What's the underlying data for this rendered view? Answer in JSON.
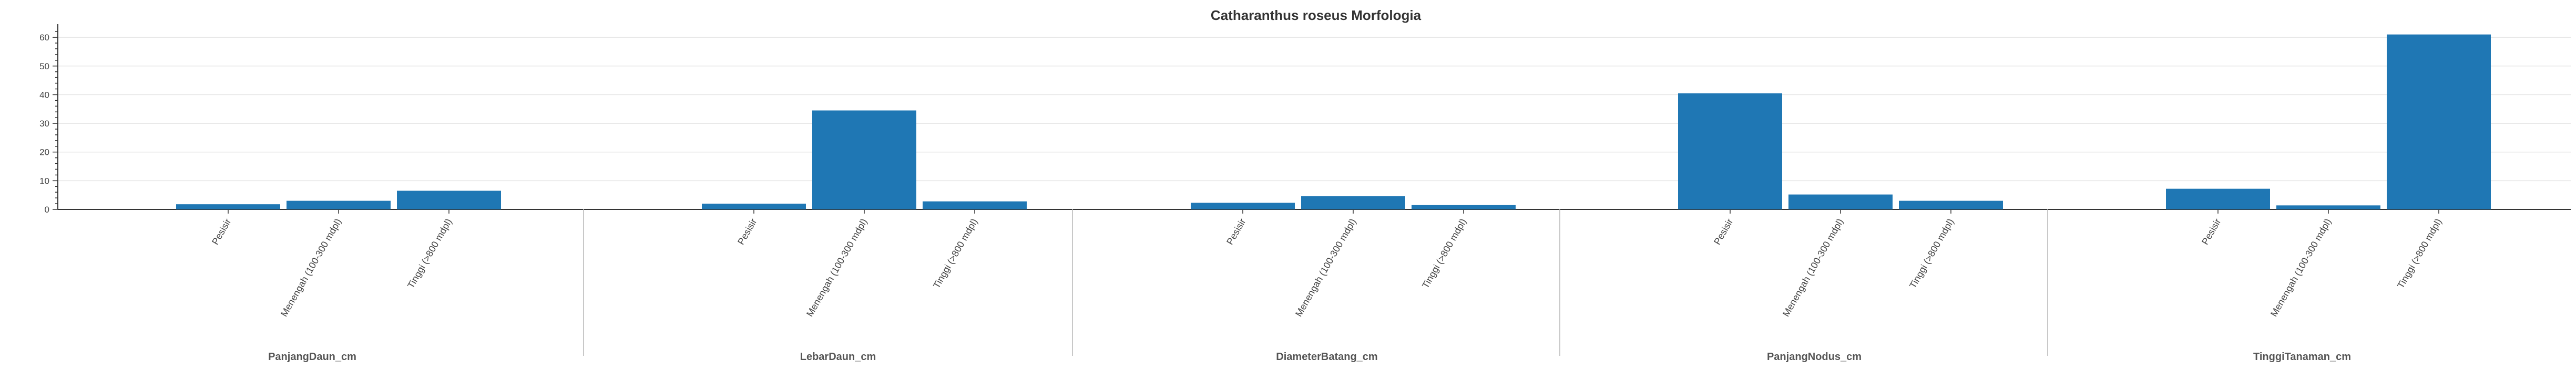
{
  "chart_data": {
    "type": "bar",
    "title": "Catharanthus roseus Morfologia",
    "groups": [
      {
        "name": "PanjangDaun_cm",
        "categories": [
          "Pesisir",
          "Menengah (100-300 mdpl)",
          "Tinggi (>800 mdpl)"
        ],
        "values": [
          1.8,
          3.0,
          6.5
        ]
      },
      {
        "name": "LebarDaun_cm",
        "categories": [
          "Pesisir",
          "Menengah (100-300 mdpl)",
          "Tinggi (>800 mdpl)"
        ],
        "values": [
          2.0,
          34.5,
          2.8
        ]
      },
      {
        "name": "DiameterBatang_cm",
        "categories": [
          "Pesisir",
          "Menengah (100-300 mdpl)",
          "Tinggi (>800 mdpl)"
        ],
        "values": [
          2.3,
          4.6,
          1.5
        ]
      },
      {
        "name": "PanjangNodus_cm",
        "categories": [
          "Pesisir",
          "Menengah (100-300 mdpl)",
          "Tinggi (>800 mdpl)"
        ],
        "values": [
          40.5,
          5.2,
          3.0
        ]
      },
      {
        "name": "TinggiTanaman_cm",
        "categories": [
          "Pesisir",
          "Menengah (100-300 mdpl)",
          "Tinggi (>800 mdpl)"
        ],
        "values": [
          7.2,
          1.4,
          61.0
        ]
      }
    ],
    "ylim": [
      0,
      63.5
    ],
    "yticks": [
      0,
      10,
      20,
      30,
      40,
      50,
      60
    ],
    "grid": true,
    "legend": "none",
    "colors": {
      "bar": "#1f77b4",
      "grid": "#e5e5e5",
      "axis": "#333333",
      "separator": "#c8c8c8"
    }
  }
}
